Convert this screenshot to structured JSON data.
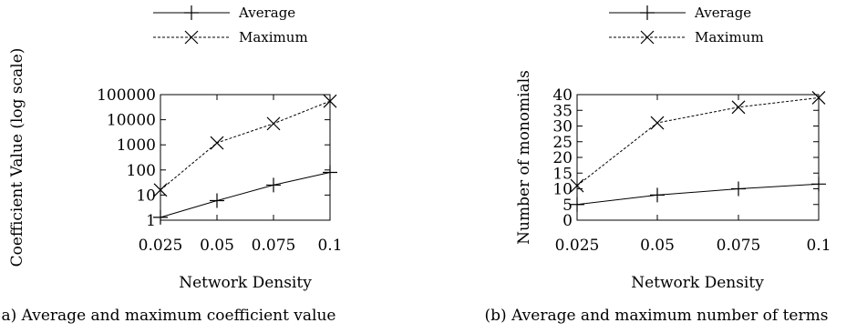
{
  "chart_data": [
    {
      "type": "line",
      "caption": "a) Average and maximum coefficient value",
      "xlabel": "Network Density",
      "ylabel": "Coefficient Value (log scale)",
      "x": [
        0.025,
        0.05,
        0.075,
        0.1
      ],
      "x_tick_labels": [
        "0.025",
        "0.05",
        "0.075",
        "0.1"
      ],
      "y_scale": "log",
      "ylim": [
        1,
        100000
      ],
      "y_ticks": [
        1,
        10,
        100,
        1000,
        10000,
        100000
      ],
      "y_tick_labels": [
        "1",
        "10",
        "100",
        "1000",
        "10000",
        "100000"
      ],
      "legend_position": "top",
      "series": [
        {
          "name": "Average",
          "values": [
            1.3,
            6,
            25,
            80
          ],
          "style": "solid",
          "marker": "plus"
        },
        {
          "name": "Maximum",
          "values": [
            16,
            1200,
            7000,
            55000
          ],
          "style": "dashed",
          "marker": "cross"
        }
      ]
    },
    {
      "type": "line",
      "caption": "(b) Average and maximum number of terms",
      "xlabel": "Network Density",
      "ylabel": "Number of monomials",
      "x": [
        0.025,
        0.05,
        0.075,
        0.1
      ],
      "x_tick_labels": [
        "0.025",
        "0.05",
        "0.075",
        "0.1"
      ],
      "y_scale": "linear",
      "ylim": [
        0,
        40
      ],
      "y_ticks": [
        0,
        5,
        10,
        15,
        20,
        25,
        30,
        35,
        40
      ],
      "y_tick_labels": [
        "0",
        "5",
        "10",
        "15",
        "20",
        "25",
        "30",
        "35",
        "40"
      ],
      "legend_position": "top",
      "series": [
        {
          "name": "Average",
          "values": [
            5,
            8,
            10,
            11.5
          ],
          "style": "solid",
          "marker": "plus"
        },
        {
          "name": "Maximum",
          "values": [
            11,
            31,
            36,
            39
          ],
          "style": "dashed",
          "marker": "cross"
        }
      ]
    }
  ]
}
